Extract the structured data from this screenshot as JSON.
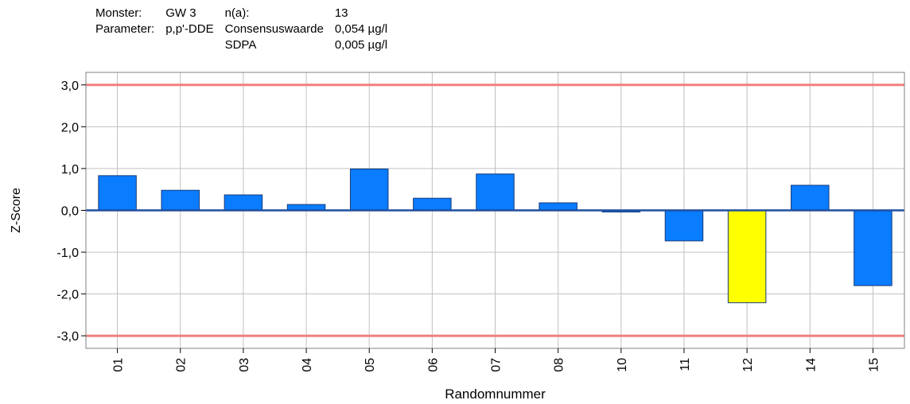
{
  "header": {
    "monster_label": "Monster:",
    "monster_value": "GW 3",
    "n_label": "n(a):",
    "n_value": "13",
    "parameter_label": "Parameter:",
    "parameter_value": "p,p'-DDE",
    "consensus_label": "Consensuswaarde",
    "consensus_value": "0,054 µg/l",
    "sdpa_label": "SDPA",
    "sdpa_value": "0,005 µg/l"
  },
  "chart_data": {
    "type": "bar",
    "xlabel": "Randomnummer",
    "ylabel": "Z-Score",
    "ylim": [
      -3.3,
      3.3
    ],
    "yticks": [
      3.0,
      2.0,
      1.0,
      0.0,
      -1.0,
      -2.0,
      -3.0
    ],
    "ytick_labels": [
      "3,0",
      "2,0",
      "1,0",
      "0,0",
      "-1,0",
      "-2,0",
      "-3,0"
    ],
    "categories": [
      "01",
      "02",
      "03",
      "04",
      "05",
      "06",
      "07",
      "08",
      "10",
      "11",
      "12",
      "14",
      "15"
    ],
    "values": [
      0.83,
      0.48,
      0.37,
      0.14,
      0.99,
      0.29,
      0.87,
      0.18,
      -0.04,
      -0.73,
      -2.21,
      0.6,
      -1.8
    ],
    "highlight_category": "12",
    "limit_lines": [
      3.0,
      -3.0
    ],
    "grid": true,
    "colors": {
      "bar": "#0a7cff",
      "highlight": "#ffff00",
      "limit": "#f08080",
      "zero_line": "#1f4fa0",
      "grid": "#c0c0c0"
    }
  }
}
